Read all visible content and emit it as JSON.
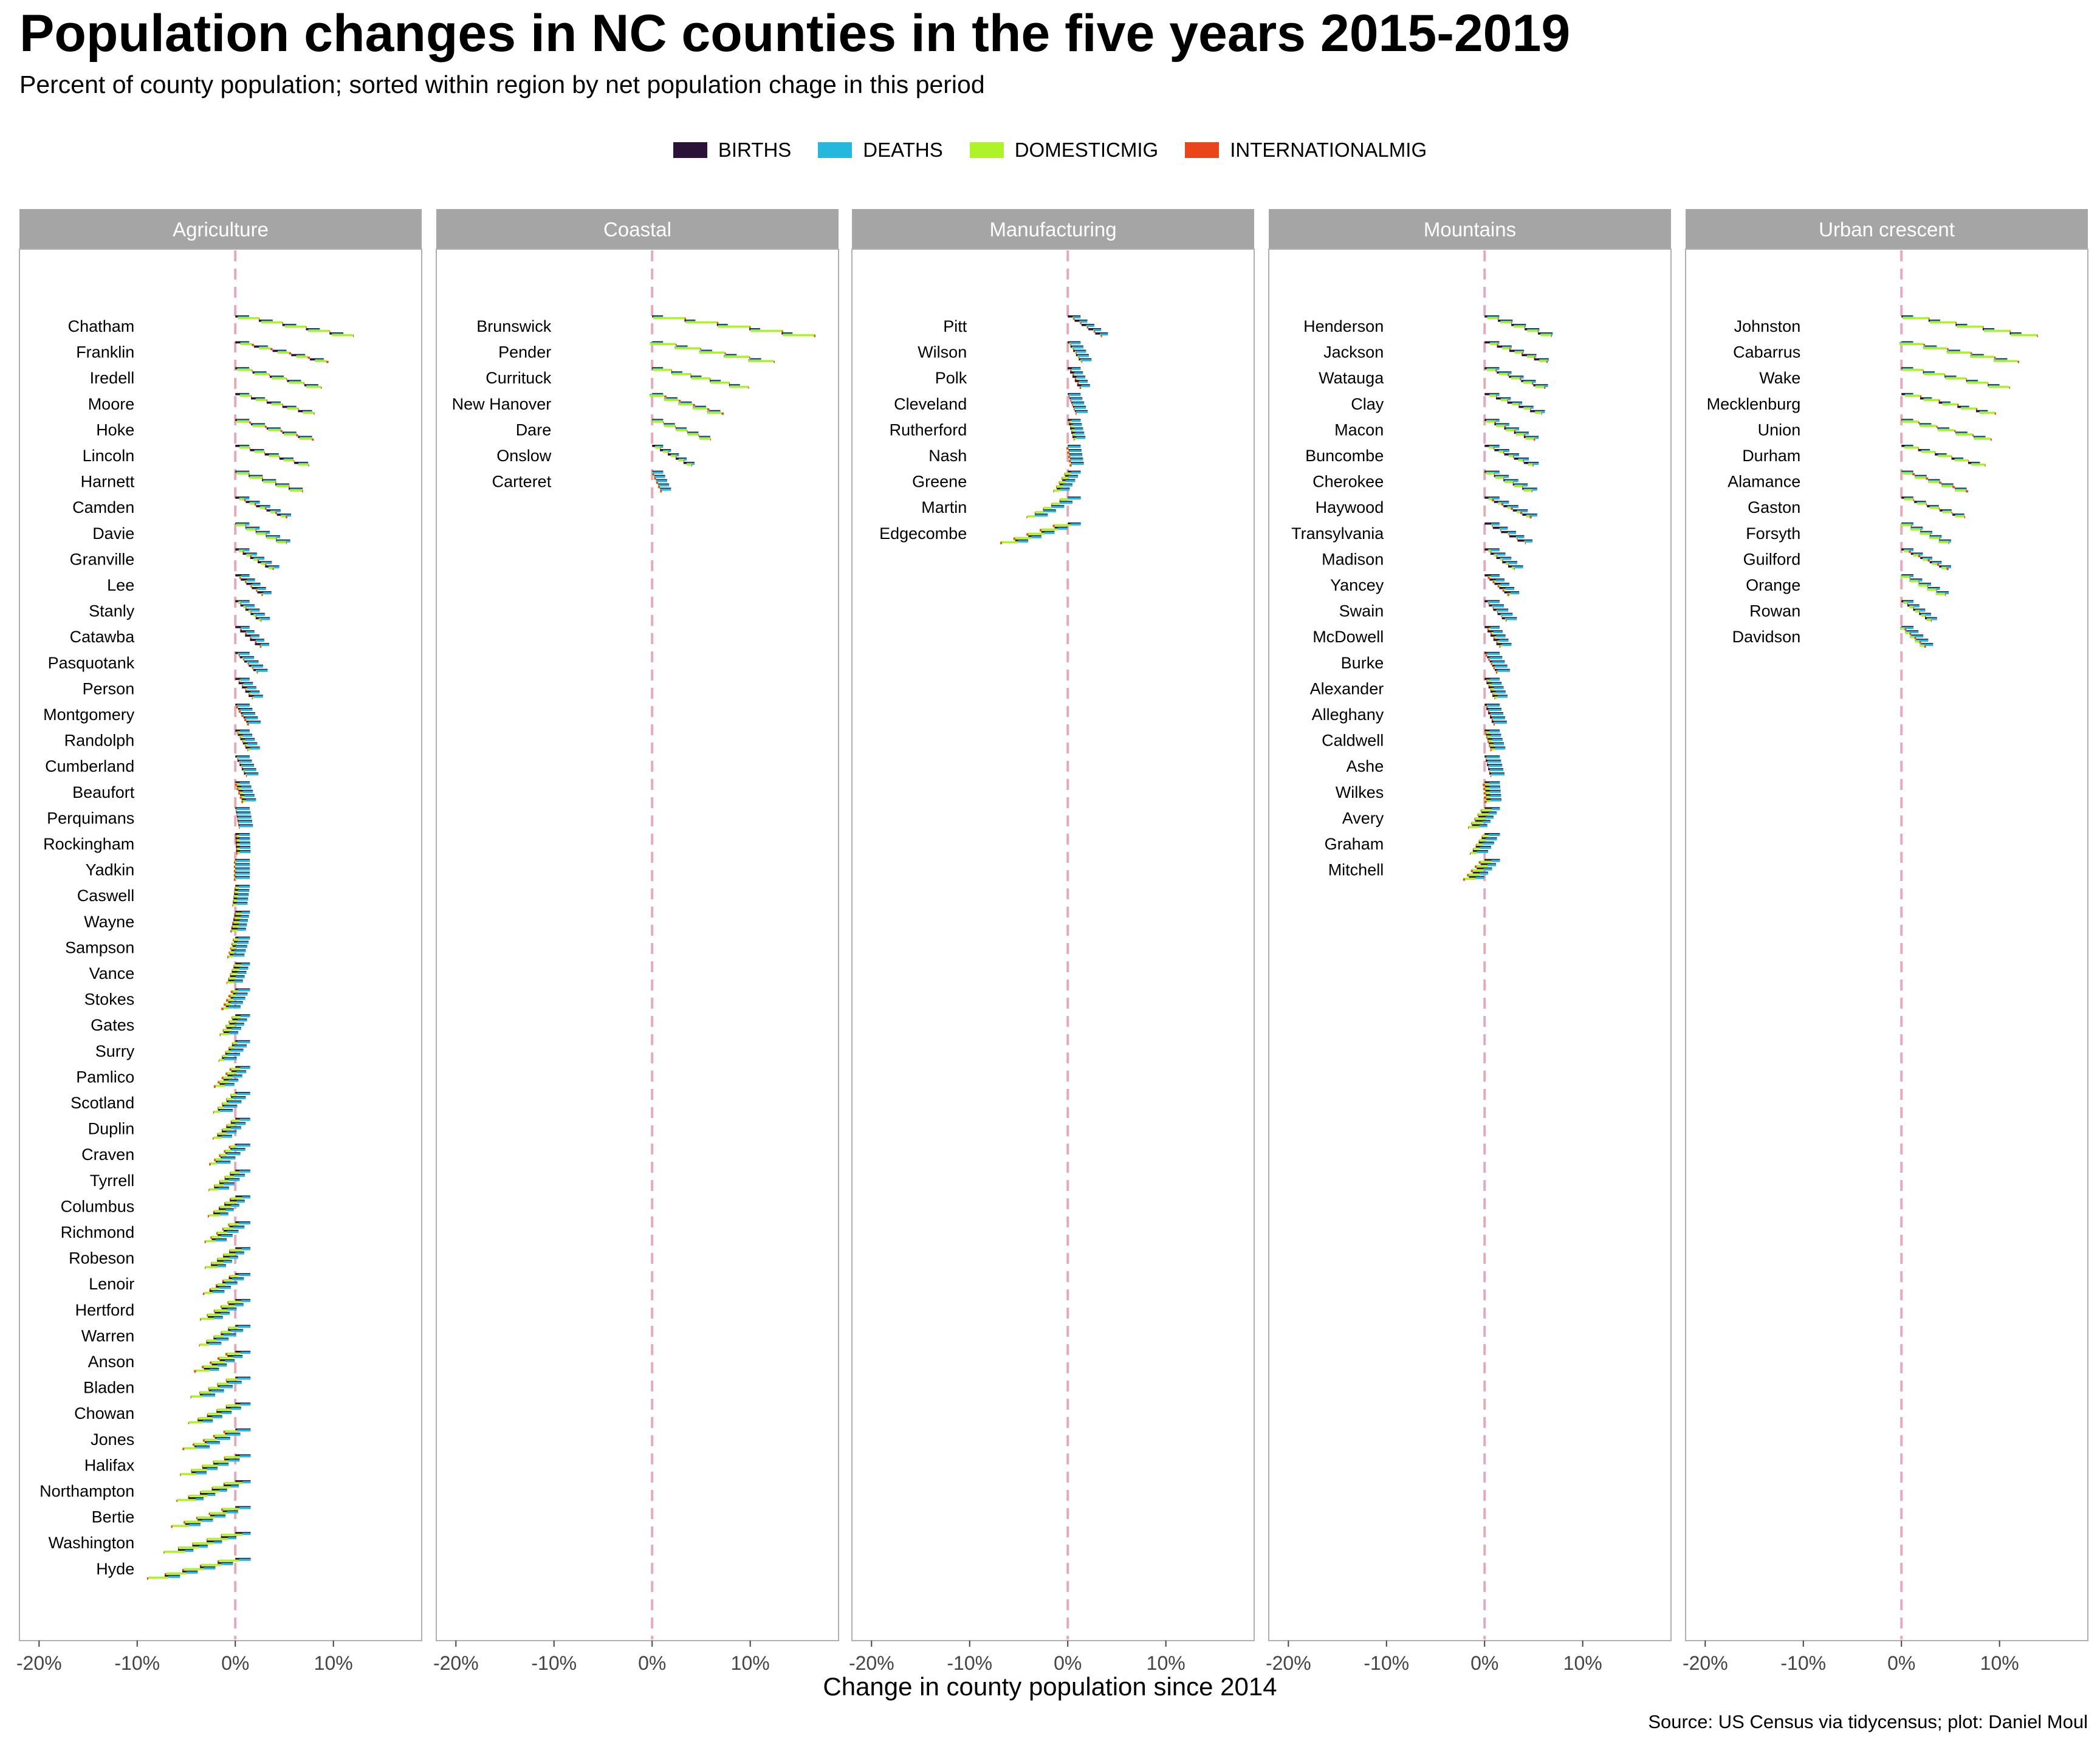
{
  "title": "Population changes in NC counties in the five years 2015-2019",
  "subtitle": "Percent of county population; sorted within region by net population chage in this period",
  "source": "Source: US Census via tidycensus; plot: Daniel Moul",
  "colors": {
    "births": "#2a1336",
    "deaths": "#26b7dd",
    "domesticmig": "#aef22a",
    "internationalmig": "#e8461a",
    "strip_bg": "#a5a5a5",
    "zero_line": "#e7a9b8",
    "panel_border": "#b0b0b0"
  },
  "chart_data": {
    "type": "bar",
    "title": "Population changes in NC counties in the five years 2015-2019",
    "subtitle": "Percent of county population; sorted within region by net population chage in this period",
    "xlabel": "Change in county population since 2014",
    "ylabel": "",
    "xlim": [
      -22,
      19
    ],
    "x_ticks": [
      -20,
      -10,
      0,
      10
    ],
    "x_tick_labels": [
      "-20%",
      "-10%",
      "0%",
      "10%"
    ],
    "grid": false,
    "legend": {
      "position": "top",
      "entries": [
        "BIRTHS",
        "DEATHS",
        "DOMESTICMIG",
        "INTERNATIONALMIG"
      ]
    },
    "panels": [
      {
        "name": "Agriculture",
        "counties": [
          {
            "name": "Chatham",
            "net": 12.0
          },
          {
            "name": "Franklin",
            "net": 9.5
          },
          {
            "name": "Iredell",
            "net": 8.8
          },
          {
            "name": "Moore",
            "net": 8.0
          },
          {
            "name": "Hoke",
            "net": 8.0
          },
          {
            "name": "Lincoln",
            "net": 7.5
          },
          {
            "name": "Harnett",
            "net": 6.8
          },
          {
            "name": "Camden",
            "net": 5.3
          },
          {
            "name": "Davie",
            "net": 5.2
          },
          {
            "name": "Granville",
            "net": 3.8
          },
          {
            "name": "Lee",
            "net": 2.8
          },
          {
            "name": "Stanly",
            "net": 2.6
          },
          {
            "name": "Catawba",
            "net": 2.5
          },
          {
            "name": "Pasquotank",
            "net": 2.3
          },
          {
            "name": "Person",
            "net": 1.7
          },
          {
            "name": "Montgomery",
            "net": 1.4
          },
          {
            "name": "Randolph",
            "net": 1.3
          },
          {
            "name": "Cumberland",
            "net": 1.1
          },
          {
            "name": "Beaufort",
            "net": 0.8
          },
          {
            "name": "Perquimans",
            "net": 0.4
          },
          {
            "name": "Rockingham",
            "net": 0.1
          },
          {
            "name": "Yadkin",
            "net": 0.0
          },
          {
            "name": "Caswell",
            "net": -0.3
          },
          {
            "name": "Wayne",
            "net": -0.5
          },
          {
            "name": "Sampson",
            "net": -0.7
          },
          {
            "name": "Vance",
            "net": -0.9
          },
          {
            "name": "Stokes",
            "net": -1.2
          },
          {
            "name": "Gates",
            "net": -1.5
          },
          {
            "name": "Surry",
            "net": -1.7
          },
          {
            "name": "Pamlico",
            "net": -2.0
          },
          {
            "name": "Scotland",
            "net": -2.2
          },
          {
            "name": "Duplin",
            "net": -2.3
          },
          {
            "name": "Craven",
            "net": -2.5
          },
          {
            "name": "Tyrrell",
            "net": -2.7
          },
          {
            "name": "Columbus",
            "net": -2.8
          },
          {
            "name": "Richmond",
            "net": -3.0
          },
          {
            "name": "Robeson",
            "net": -3.1
          },
          {
            "name": "Lenoir",
            "net": -3.3
          },
          {
            "name": "Hertford",
            "net": -3.5
          },
          {
            "name": "Warren",
            "net": -3.7
          },
          {
            "name": "Anson",
            "net": -4.0
          },
          {
            "name": "Bladen",
            "net": -4.5
          },
          {
            "name": "Chowan",
            "net": -4.8
          },
          {
            "name": "Jones",
            "net": -5.2
          },
          {
            "name": "Halifax",
            "net": -5.6
          },
          {
            "name": "Northampton",
            "net": -6.0
          },
          {
            "name": "Bertie",
            "net": -6.4
          },
          {
            "name": "Washington",
            "net": -7.3
          },
          {
            "name": "Hyde",
            "net": -9.0
          }
        ]
      },
      {
        "name": "Coastal",
        "counties": [
          {
            "name": "Brunswick",
            "net": 16.5
          },
          {
            "name": "Pender",
            "net": 12.5
          },
          {
            "name": "Currituck",
            "net": 9.8
          },
          {
            "name": "New Hanover",
            "net": 7.3
          },
          {
            "name": "Dare",
            "net": 6.0
          },
          {
            "name": "Onslow",
            "net": 4.0
          },
          {
            "name": "Carteret",
            "net": 1.0
          }
        ]
      },
      {
        "name": "Manufacturing",
        "counties": [
          {
            "name": "Pitt",
            "net": 3.5
          },
          {
            "name": "Wilson",
            "net": 1.4
          },
          {
            "name": "Polk",
            "net": 1.2
          },
          {
            "name": "Cleveland",
            "net": 0.9
          },
          {
            "name": "Rutherford",
            "net": 0.6
          },
          {
            "name": "Nash",
            "net": 0.4
          },
          {
            "name": "Greene",
            "net": -1.4
          },
          {
            "name": "Martin",
            "net": -4.2
          },
          {
            "name": "Edgecombe",
            "net": -6.7
          }
        ]
      },
      {
        "name": "Mountains",
        "counties": [
          {
            "name": "Henderson",
            "net": 6.8
          },
          {
            "name": "Jackson",
            "net": 6.3
          },
          {
            "name": "Watauga",
            "net": 6.2
          },
          {
            "name": "Clay",
            "net": 5.8
          },
          {
            "name": "Macon",
            "net": 5.0
          },
          {
            "name": "Buncombe",
            "net": 5.0
          },
          {
            "name": "Cherokee",
            "net": 4.8
          },
          {
            "name": "Haywood",
            "net": 4.8
          },
          {
            "name": "Transylvania",
            "net": 4.2
          },
          {
            "name": "Madison",
            "net": 3.0
          },
          {
            "name": "Yancey",
            "net": 2.5
          },
          {
            "name": "Swain",
            "net": 2.2
          },
          {
            "name": "McDowell",
            "net": 1.5
          },
          {
            "name": "Burke",
            "net": 1.3
          },
          {
            "name": "Alexander",
            "net": 1.0
          },
          {
            "name": "Alleghany",
            "net": 0.9
          },
          {
            "name": "Caldwell",
            "net": 0.7
          },
          {
            "name": "Ashe",
            "net": 0.6
          },
          {
            "name": "Wilkes",
            "net": 0.2
          },
          {
            "name": "Avery",
            "net": -1.6
          },
          {
            "name": "Graham",
            "net": -1.5
          },
          {
            "name": "Mitchell",
            "net": -2.0
          }
        ]
      },
      {
        "name": "Urban crescent",
        "counties": [
          {
            "name": "Johnston",
            "net": 13.8
          },
          {
            "name": "Cabarrus",
            "net": 12.0
          },
          {
            "name": "Wake",
            "net": 11.0
          },
          {
            "name": "Mecklenburg",
            "net": 9.5
          },
          {
            "name": "Union",
            "net": 9.2
          },
          {
            "name": "Durham",
            "net": 8.5
          },
          {
            "name": "Alamance",
            "net": 6.8
          },
          {
            "name": "Gaston",
            "net": 6.5
          },
          {
            "name": "Forsyth",
            "net": 4.8
          },
          {
            "name": "Guilford",
            "net": 4.8
          },
          {
            "name": "Orange",
            "net": 4.5
          },
          {
            "name": "Rowan",
            "net": 3.0
          },
          {
            "name": "Davidson",
            "net": 2.5
          }
        ]
      }
    ]
  }
}
